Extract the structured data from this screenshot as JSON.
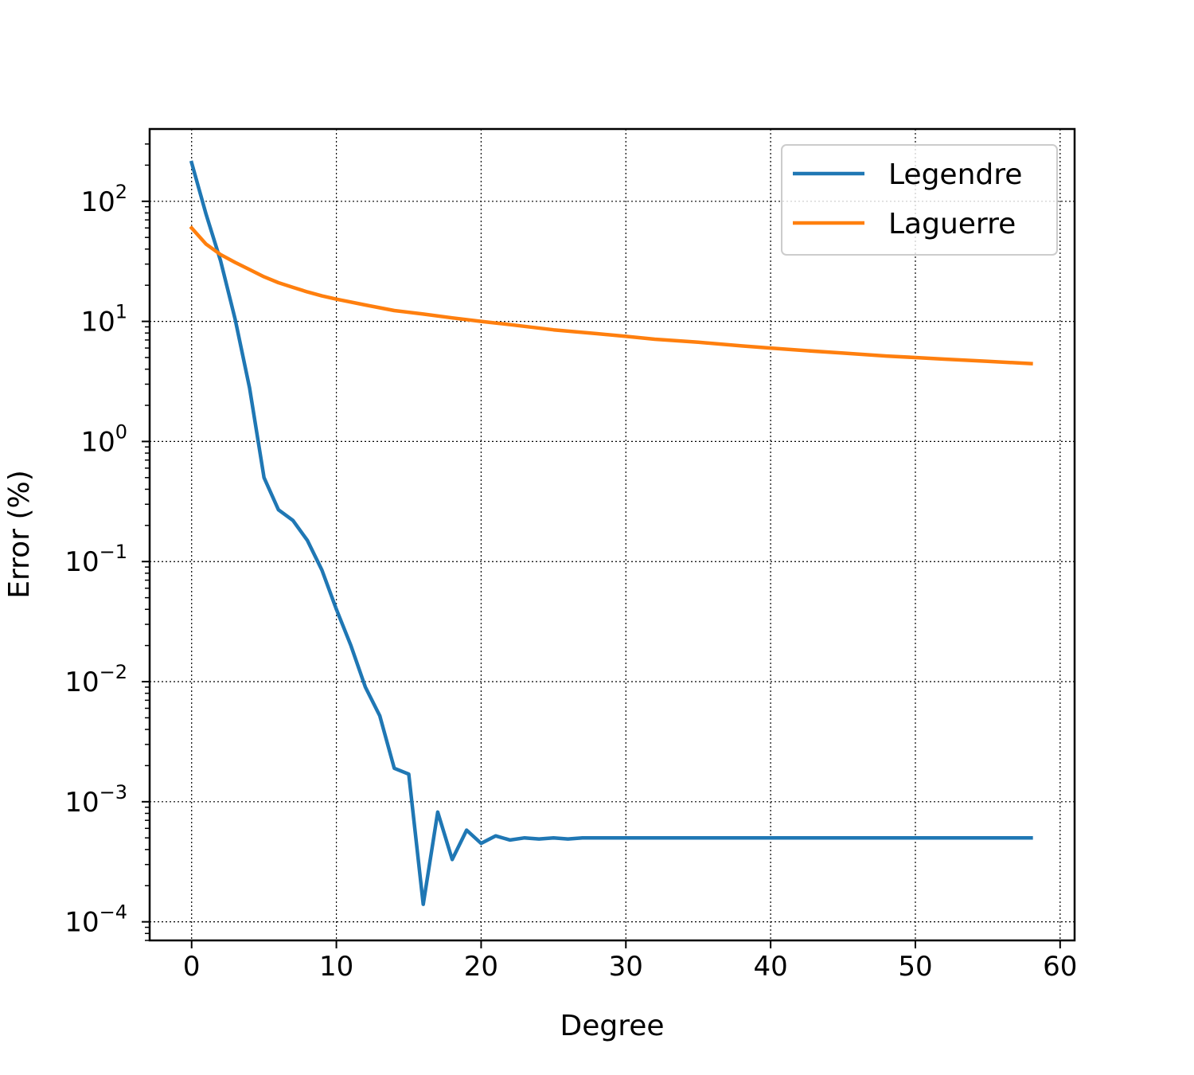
{
  "chart_data": {
    "type": "line",
    "title": "",
    "xlabel": "Degree",
    "ylabel": "Error (%)",
    "x_scale": "linear",
    "y_scale": "log",
    "xlim": [
      -2.9,
      61
    ],
    "ylim": [
      7e-05,
      400
    ],
    "x_ticks": [
      0,
      10,
      20,
      30,
      40,
      50,
      60
    ],
    "x_tick_labels": [
      "0",
      "10",
      "20",
      "30",
      "40",
      "50",
      "60"
    ],
    "y_ticks": [
      0.0001,
      0.001,
      0.01,
      0.1,
      1,
      10,
      100
    ],
    "y_tick_labels": [
      {
        "base": "10",
        "exp": "−4"
      },
      {
        "base": "10",
        "exp": "−3"
      },
      {
        "base": "10",
        "exp": "−2"
      },
      {
        "base": "10",
        "exp": "−1"
      },
      {
        "base": "10",
        "exp": "0"
      },
      {
        "base": "10",
        "exp": "1"
      },
      {
        "base": "10",
        "exp": "2"
      }
    ],
    "grid": true,
    "legend_position": "top-right",
    "series": [
      {
        "name": "Legendre",
        "color": "#1f77b4",
        "x": [
          0,
          1,
          2,
          3,
          4,
          5,
          6,
          7,
          8,
          9,
          10,
          11,
          12,
          13,
          14,
          15,
          16,
          17,
          18,
          19,
          20,
          21,
          22,
          23,
          24,
          25,
          26,
          27,
          28,
          29,
          30,
          31,
          32,
          33,
          34,
          35,
          36,
          37,
          38,
          39,
          40,
          41,
          42,
          43,
          44,
          45,
          46,
          47,
          48,
          49,
          50,
          51,
          52,
          53,
          54,
          55,
          56,
          57,
          58
        ],
        "y": [
          210,
          78,
          32,
          10.5,
          2.8,
          0.5,
          0.27,
          0.22,
          0.15,
          0.085,
          0.04,
          0.02,
          0.009,
          0.0052,
          0.0019,
          0.0017,
          0.00014,
          0.00082,
          0.00033,
          0.00058,
          0.00045,
          0.00052,
          0.00048,
          0.0005,
          0.00049,
          0.0005,
          0.00049,
          0.0005,
          0.0005,
          0.0005,
          0.0005,
          0.0005,
          0.0005,
          0.0005,
          0.0005,
          0.0005,
          0.0005,
          0.0005,
          0.0005,
          0.0005,
          0.0005,
          0.0005,
          0.0005,
          0.0005,
          0.0005,
          0.0005,
          0.0005,
          0.0005,
          0.0005,
          0.0005,
          0.0005,
          0.0005,
          0.0005,
          0.0005,
          0.0005,
          0.0005,
          0.0005,
          0.0005,
          0.0005
        ]
      },
      {
        "name": "Laguerre",
        "color": "#ff7f0e",
        "x": [
          0,
          1,
          2,
          3,
          4,
          5,
          6,
          7,
          8,
          9,
          10,
          12,
          14,
          16,
          18,
          20,
          22,
          25,
          28,
          30,
          32,
          35,
          38,
          40,
          42,
          45,
          48,
          50,
          52,
          55,
          58
        ],
        "y": [
          60,
          44,
          36,
          31,
          27,
          23.5,
          21,
          19.2,
          17.6,
          16.3,
          15.3,
          13.7,
          12.3,
          11.5,
          10.7,
          10,
          9.4,
          8.5,
          7.9,
          7.5,
          7.1,
          6.7,
          6.25,
          6.0,
          5.75,
          5.45,
          5.15,
          5.0,
          4.85,
          4.65,
          4.45
        ]
      }
    ]
  }
}
